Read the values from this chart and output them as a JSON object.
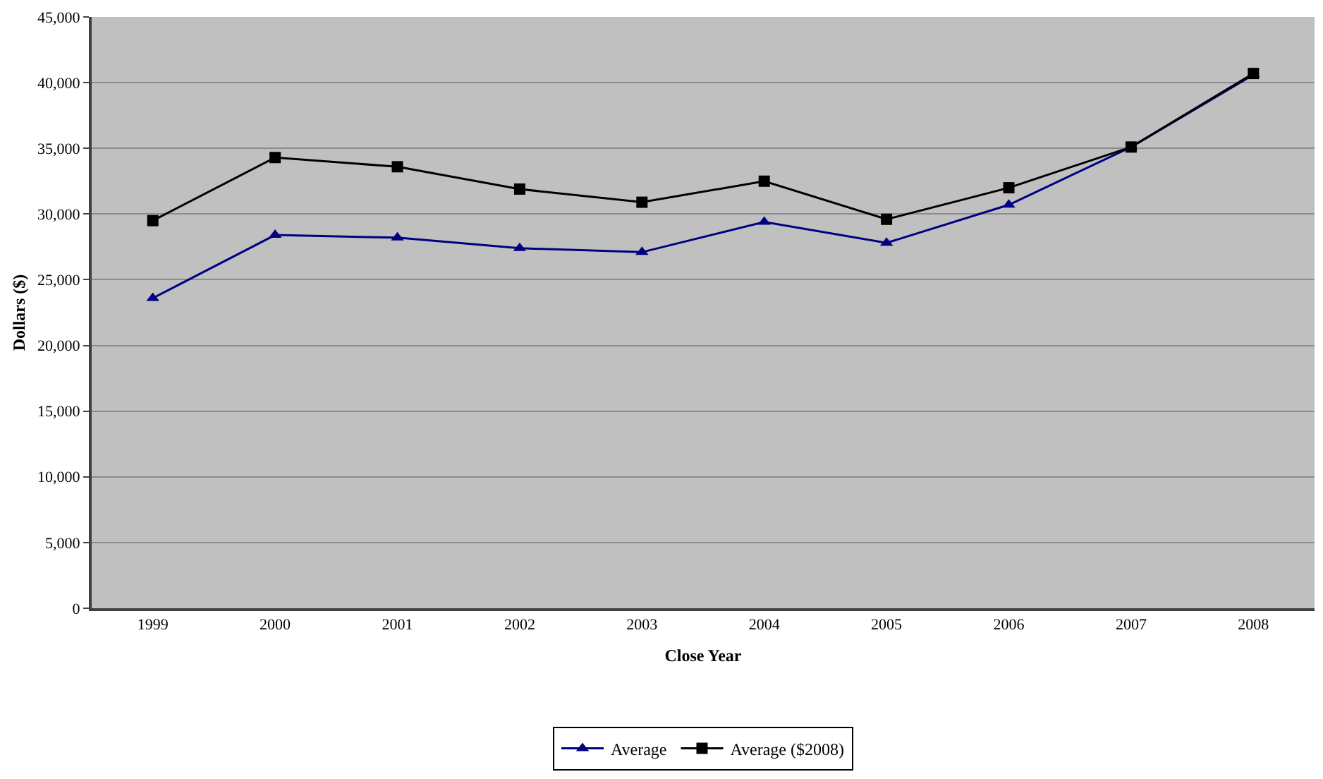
{
  "chart_data": {
    "type": "line",
    "xlabel": "Close Year",
    "ylabel": "Dollars ($)",
    "categories": [
      "1999",
      "2000",
      "2001",
      "2002",
      "2003",
      "2004",
      "2005",
      "2006",
      "2007",
      "2008"
    ],
    "series": [
      {
        "name": "Average",
        "color": "#000080",
        "marker": "triangle",
        "values": [
          23600,
          28400,
          28200,
          27400,
          27100,
          29400,
          27800,
          30700,
          35100,
          40600
        ]
      },
      {
        "name": "Average ($2008)",
        "color": "#000000",
        "marker": "square",
        "values": [
          29500,
          34300,
          33600,
          31900,
          30900,
          32500,
          29600,
          32000,
          35100,
          40700
        ]
      }
    ],
    "ylim": [
      0,
      45000
    ],
    "yticks": [
      {
        "value": 0,
        "label": "0"
      },
      {
        "value": 5000,
        "label": "5,000"
      },
      {
        "value": 10000,
        "label": "10,000"
      },
      {
        "value": 15000,
        "label": "15,000"
      },
      {
        "value": 20000,
        "label": "20,000"
      },
      {
        "value": 25000,
        "label": "25,000"
      },
      {
        "value": 30000,
        "label": "30,000"
      },
      {
        "value": 35000,
        "label": "35,000"
      },
      {
        "value": 40000,
        "label": "40,000"
      },
      {
        "value": 45000,
        "label": "45,000"
      }
    ],
    "grid": "y",
    "legend": "bottom",
    "line_style": "solid"
  }
}
